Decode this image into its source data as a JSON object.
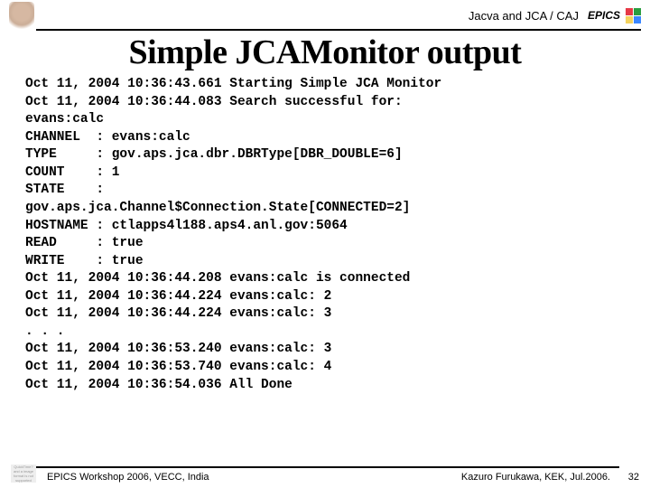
{
  "header": {
    "breadcrumb": "Jacva and JCA / CAJ",
    "epics_label": "EPICS",
    "color_blocks": [
      "#e63946",
      "#2a9d3f",
      "#f4d35e",
      "#3a86ff"
    ]
  },
  "title": "Simple JCAMonitor output",
  "code_lines": [
    "Oct 11, 2004 10:36:43.661 Starting Simple JCA Monitor",
    "Oct 11, 2004 10:36:44.083 Search successful for:",
    "evans:calc",
    "CHANNEL  : evans:calc",
    "TYPE     : gov.aps.jca.dbr.DBRType[DBR_DOUBLE=6]",
    "COUNT    : 1",
    "STATE    :",
    "gov.aps.jca.Channel$Connection.State[CONNECTED=2]",
    "HOSTNAME : ctlapps4l188.aps4.anl.gov:5064",
    "READ     : true",
    "WRITE    : true",
    "Oct 11, 2004 10:36:44.208 evans:calc is connected",
    "Oct 11, 2004 10:36:44.224 evans:calc: 2",
    "Oct 11, 2004 10:36:44.224 evans:calc: 3",
    ". . .",
    "Oct 11, 2004 10:36:53.240 evans:calc: 3",
    "Oct 11, 2004 10:36:53.740 evans:calc: 4",
    "Oct 11, 2004 10:36:54.036 All Done"
  ],
  "footer": {
    "left_placeholder": "QuickTime? and a\nimage format\nis not supported",
    "venue": "EPICS Workshop 2006, VECC, India",
    "credit": "Kazuro Furukawa, KEK, Jul.2006.",
    "page": "32"
  }
}
